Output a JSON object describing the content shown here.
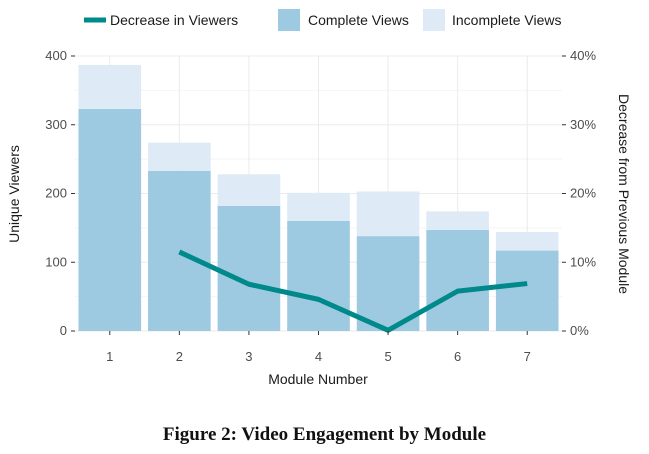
{
  "caption": "Figure 2: Video Engagement by Module",
  "colors": {
    "complete": "#9ecae1",
    "incomplete": "#deebf7",
    "decrease": "#00898a",
    "grid": "#ebebeb"
  },
  "chart_data": {
    "type": "bar",
    "stacked": true,
    "xlabel": "Module Number",
    "ylabel": "Unique Viewers",
    "y2label": "Decrease from Previous Module",
    "categories": [
      "1",
      "2",
      "3",
      "4",
      "5",
      "6",
      "7"
    ],
    "ylim": [
      0,
      400
    ],
    "yticks": [
      0,
      100,
      200,
      300,
      400
    ],
    "y2lim": [
      0,
      40
    ],
    "y2ticks": [
      "0%",
      "10%",
      "20%",
      "30%",
      "40%"
    ],
    "grid": true,
    "legend_position": "top",
    "legend": [
      "Decrease in Viewers",
      "Complete Views",
      "Incomplete Views"
    ],
    "series": [
      {
        "name": "Complete Views",
        "type": "bar",
        "values": [
          323,
          233,
          182,
          160,
          138,
          147,
          117
        ]
      },
      {
        "name": "Incomplete Views",
        "type": "bar",
        "values": [
          64,
          41,
          46,
          41,
          65,
          27,
          27
        ]
      },
      {
        "name": "Decrease in Viewers",
        "type": "line",
        "axis": "right",
        "values": [
          null,
          11.5,
          6.8,
          4.6,
          0.1,
          5.8,
          6.9
        ]
      }
    ]
  }
}
